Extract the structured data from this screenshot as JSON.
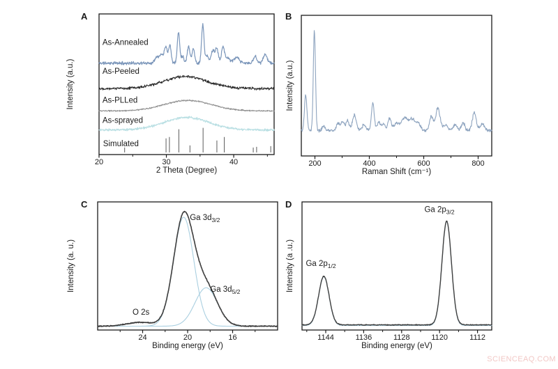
{
  "meta": {
    "watermark": "SCIENCEAQ.COM"
  },
  "chart_data": [
    {
      "id": "panel-a",
      "panel_label": "A",
      "type": "line",
      "title": "",
      "xlabel": "2 Theta (Degree)",
      "ylabel": "Intensity (a.u.)",
      "xlim": [
        20,
        46
      ],
      "ylim": [
        0,
        1
      ],
      "grid": false,
      "xticks": [
        20,
        30,
        40
      ],
      "xtick_labels": [
        "20",
        "30",
        "40"
      ],
      "xminor": [
        25,
        35,
        45
      ],
      "layout": {
        "l": 57,
        "t": 15,
        "r": 12,
        "b": 38,
        "ylabel_dx": -38
      },
      "series": [
        {
          "name": "As-Annealed",
          "type": "curve",
          "color": "#7b96ba",
          "lw": 1.2,
          "base": 0.65,
          "noise": 0.013,
          "seed": 11,
          "peaks": [
            [
              28.6,
              0.05,
              0.3
            ],
            [
              29.3,
              0.06,
              0.25
            ],
            [
              29.9,
              0.12,
              0.2
            ],
            [
              30.5,
              0.13,
              0.2
            ],
            [
              31.8,
              0.22,
              0.18
            ],
            [
              32.4,
              0.05,
              0.2
            ],
            [
              33.3,
              0.12,
              0.2
            ],
            [
              34.0,
              0.1,
              0.2
            ],
            [
              35.4,
              0.27,
              0.18
            ],
            [
              36.0,
              0.05,
              0.25
            ],
            [
              36.9,
              0.09,
              0.25
            ],
            [
              37.5,
              0.1,
              0.22
            ],
            [
              38.4,
              0.12,
              0.22
            ],
            [
              39.1,
              0.04,
              0.3
            ],
            [
              40.4,
              0.04,
              0.4
            ],
            [
              43.2,
              0.05,
              0.25
            ],
            [
              44.7,
              0.06,
              0.3
            ]
          ]
        },
        {
          "name": "As-Peeled",
          "type": "curve",
          "color": "#2b2b2b",
          "lw": 1.0,
          "base": 0.47,
          "noise": 0.012,
          "seed": 22,
          "peaks": [
            [
              32.8,
              0.085,
              3.2
            ]
          ]
        },
        {
          "name": "As-PLLed",
          "type": "curve",
          "color": "#8f8f8f",
          "lw": 1.0,
          "base": 0.31,
          "noise": 0.006,
          "seed": 33,
          "peaks": [
            [
              33.2,
              0.075,
              3.5
            ]
          ]
        },
        {
          "name": "As-sprayed",
          "type": "curve",
          "color": "#b9dfe3",
          "lw": 1.1,
          "base": 0.175,
          "noise": 0.01,
          "seed": 44,
          "peaks": [
            [
              33.0,
              0.09,
              3.3
            ]
          ]
        },
        {
          "name": "Simulated",
          "type": "sticks",
          "color": "#5a5a5a",
          "lw": 1.0,
          "base": 0.015,
          "points": [
            [
              23.8,
              0.035
            ],
            [
              29.95,
              0.1
            ],
            [
              30.45,
              0.11
            ],
            [
              31.85,
              0.165
            ],
            [
              33.5,
              0.05
            ],
            [
              35.45,
              0.175
            ],
            [
              37.5,
              0.085
            ],
            [
              38.6,
              0.11
            ],
            [
              42.9,
              0.035
            ],
            [
              43.4,
              0.04
            ],
            [
              45.5,
              0.045
            ]
          ]
        }
      ],
      "labels": [
        {
          "text": "As-Annealed",
          "x": 20.5,
          "y": 0.78
        },
        {
          "text": "As-Peeled",
          "x": 20.5,
          "y": 0.575
        },
        {
          "text": "As-PLLed",
          "x": 20.5,
          "y": 0.37
        },
        {
          "text": "As-sprayed",
          "x": 20.5,
          "y": 0.225
        },
        {
          "text": "Simulated",
          "x": 20.6,
          "y": 0.06
        }
      ]
    },
    {
      "id": "panel-b",
      "panel_label": "B",
      "type": "line",
      "title": "",
      "xlabel": "Raman Shift (cm⁻¹)",
      "ylabel": "Intensity (a.u.)",
      "xlim": [
        150,
        850
      ],
      "ylim": [
        0,
        1
      ],
      "grid": false,
      "xticks": [
        200,
        400,
        600,
        800
      ],
      "xtick_labels": [
        "200",
        "400",
        "600",
        "800"
      ],
      "xminor": [
        300,
        500,
        700
      ],
      "layout": {
        "l": 32,
        "t": 17,
        "r": 7,
        "b": 36,
        "ylabel_dx": -13
      },
      "series": [
        {
          "name": "Raman spectrum",
          "type": "curve",
          "color": "#8ea4bf",
          "lw": 1.1,
          "base": 0.18,
          "noise": 0.013,
          "seed": 55,
          "peaks": [
            [
              166,
              0.26,
              4.5
            ],
            [
              198,
              0.71,
              4
            ],
            [
              232,
              0.03,
              6
            ],
            [
              285,
              0.05,
              7
            ],
            [
              302,
              0.06,
              6
            ],
            [
              320,
              0.07,
              6
            ],
            [
              345,
              0.11,
              7
            ],
            [
              380,
              0.04,
              8
            ],
            [
              413,
              0.2,
              5
            ],
            [
              435,
              0.06,
              6
            ],
            [
              452,
              0.05,
              6
            ],
            [
              474,
              0.085,
              6
            ],
            [
              500,
              0.05,
              10
            ],
            [
              530,
              0.09,
              12
            ],
            [
              558,
              0.08,
              10
            ],
            [
              580,
              0.05,
              8
            ],
            [
              628,
              0.1,
              7
            ],
            [
              652,
              0.16,
              8
            ],
            [
              680,
              0.04,
              8
            ],
            [
              715,
              0.04,
              8
            ],
            [
              745,
              0.06,
              6
            ],
            [
              786,
              0.13,
              7
            ],
            [
              815,
              0.05,
              8
            ]
          ]
        }
      ],
      "labels": []
    },
    {
      "id": "panel-c",
      "panel_label": "C",
      "type": "line",
      "title": "",
      "xlabel": "Binding energy (eV)",
      "ylabel": "Intensity (a. u.)",
      "xlim": [
        28,
        12
      ],
      "ylim": [
        0,
        1
      ],
      "grid": false,
      "axis_reversed": true,
      "xticks": [
        24,
        20,
        16
      ],
      "xtick_labels": [
        "24",
        "20",
        "16"
      ],
      "xminor": [
        26,
        22,
        18,
        14
      ],
      "layout": {
        "l": 55,
        "t": 12,
        "r": 9,
        "b": 56,
        "ylabel_dx": -35
      },
      "series": [
        {
          "name": "Ga 3d3/2 component",
          "type": "curve",
          "color": "#a9cfe0",
          "lw": 1.1,
          "base": 0.03,
          "noise": 0,
          "seed": 1,
          "peaks": [
            [
              20.35,
              0.85,
              0.9
            ]
          ]
        },
        {
          "name": "Ga 3d5/2 component",
          "type": "curve",
          "color": "#a9cfe0",
          "lw": 1.1,
          "base": 0.03,
          "noise": 0,
          "seed": 2,
          "peaks": [
            [
              18.35,
              0.3,
              1.0
            ]
          ]
        },
        {
          "name": "envelope",
          "type": "curve",
          "color": "#3d3d3d",
          "lw": 1.6,
          "base": 0.03,
          "noise": 0.004,
          "seed": 66,
          "peaks": [
            [
              24.2,
              0.03,
              1.2
            ],
            [
              20.35,
              0.85,
              0.9
            ],
            [
              18.35,
              0.3,
              1.0
            ]
          ]
        }
      ],
      "labels": [
        {
          "text": "O 2s",
          "x": 24.9,
          "y": 0.12
        },
        {
          "text": "Ga 3d",
          "sub": "3/2",
          "x": 19.8,
          "y": 0.86
        },
        {
          "text": "Ga 3d",
          "sub": "5/2",
          "x": 18.0,
          "y": 0.3
        }
      ]
    },
    {
      "id": "panel-d",
      "panel_label": "D",
      "type": "line",
      "title": "",
      "xlabel": "Binding energy (eV)",
      "ylabel": "Intensity (a .u.)",
      "xlim": [
        1149,
        1109
      ],
      "ylim": [
        0,
        1
      ],
      "grid": false,
      "axis_reversed": true,
      "xticks": [
        1144,
        1136,
        1128,
        1120,
        1112
      ],
      "xtick_labels": [
        "1144",
        "1136",
        "1128",
        "1120",
        "1112"
      ],
      "xminor": [
        1148,
        1140,
        1132,
        1124,
        1116
      ],
      "layout": {
        "l": 33,
        "t": 12,
        "r": 10,
        "b": 56,
        "ylabel_dx": -14
      },
      "series": [
        {
          "name": "fit",
          "type": "curve",
          "color": "#a9cfe0",
          "lw": 1.1,
          "base": 0.035,
          "noise": 0,
          "seed": 3,
          "peaks": [
            [
              1144.4,
              0.38,
              1.1
            ],
            [
              1118.5,
              0.81,
              1.0
            ]
          ]
        },
        {
          "name": "envelope",
          "type": "curve",
          "color": "#3f3f3f",
          "lw": 1.4,
          "base": 0.04,
          "noise": 0.004,
          "seed": 77,
          "peaks": [
            [
              1144.4,
              0.38,
              1.1
            ],
            [
              1118.5,
              0.81,
              1.0
            ]
          ]
        }
      ],
      "labels": [
        {
          "text": "Ga 2p",
          "sub": "1/2",
          "x": 1148.2,
          "y": 0.5
        },
        {
          "text": "Ga 2p",
          "sub": "3/2",
          "x": 1123.2,
          "y": 0.92
        }
      ]
    }
  ]
}
